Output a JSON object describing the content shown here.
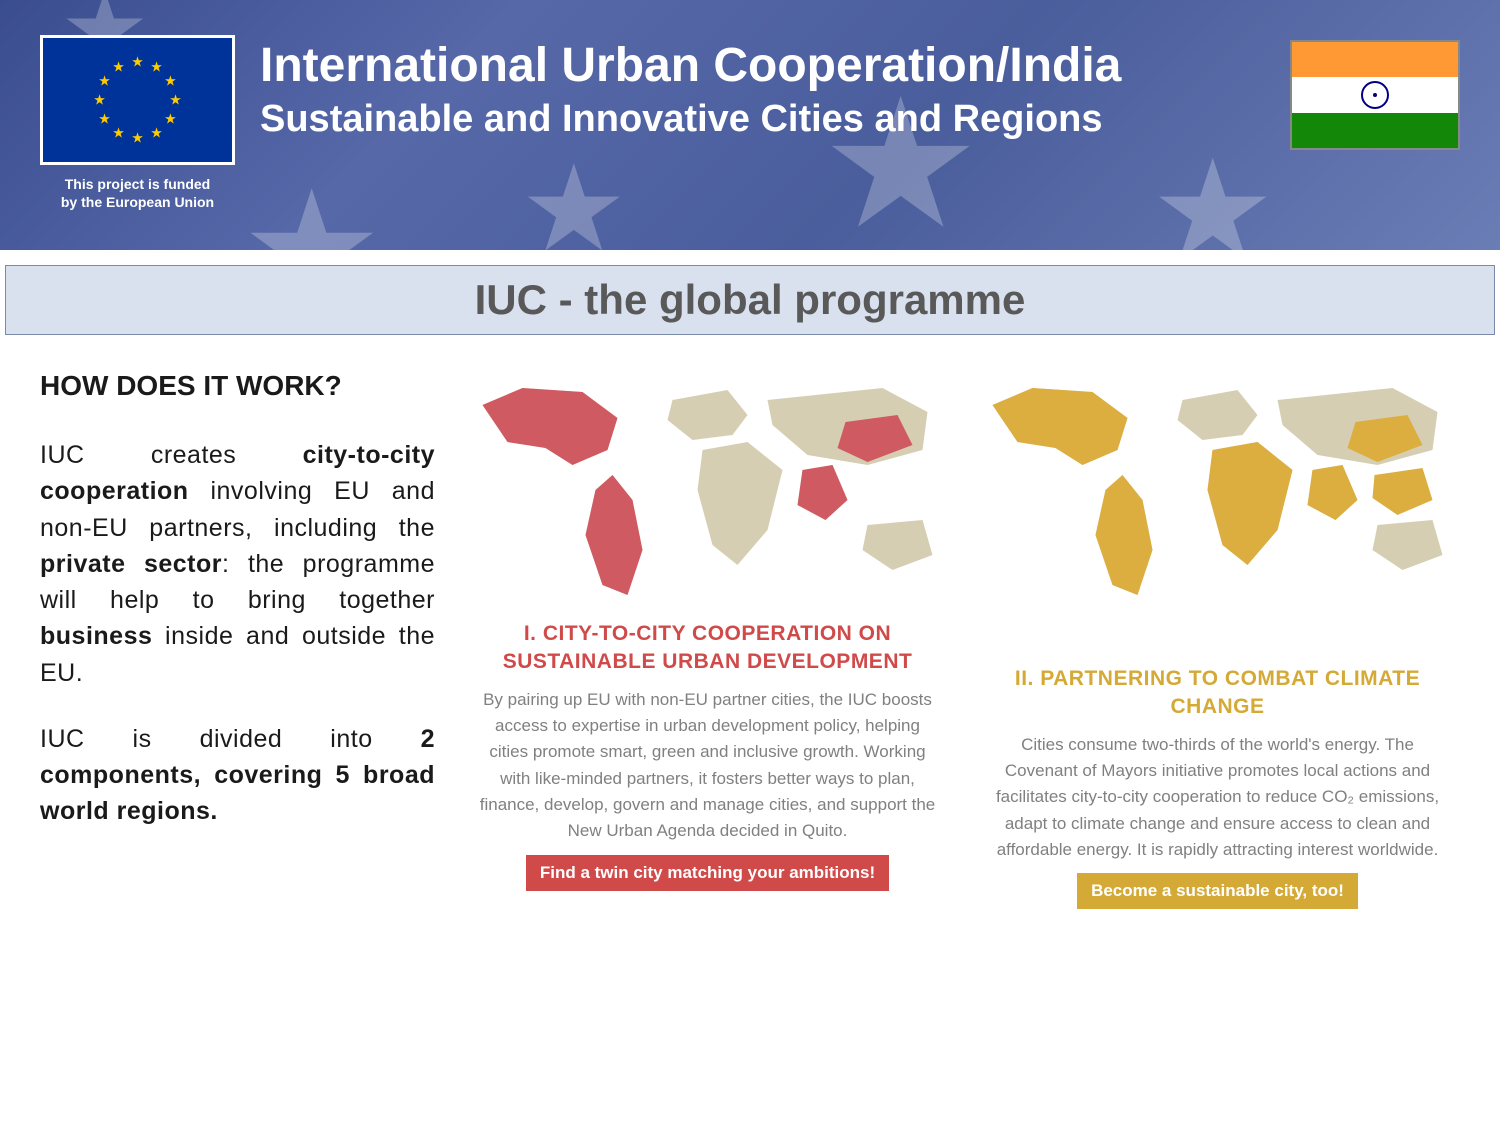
{
  "header": {
    "title": "International Urban Cooperation/India",
    "subtitle": "Sustainable and Innovative Cities and Regions",
    "funding_line1": "This project is funded",
    "funding_line2": "by the European Union",
    "bg_gradient_colors": [
      "#3a4d8f",
      "#5668a8",
      "#4a5d9c",
      "#6b7db5"
    ],
    "eu_flag": {
      "bg": "#003399",
      "star_color": "#ffcc00"
    },
    "india_flag": {
      "saffron": "#ff9933",
      "white": "#ffffff",
      "green": "#138808",
      "chakra": "#000080"
    }
  },
  "title_bar": {
    "text": "IUC - the global programme",
    "bg": "#d9e1ef",
    "text_color": "#595959"
  },
  "how": {
    "heading": "HOW DOES IT WORK?",
    "para1_parts": [
      "IUC creates ",
      "city-to-city cooperation",
      " involving EU and non-EU partners, including the ",
      "private sector",
      ": the programme will help to bring together ",
      "business",
      " inside and outside the EU."
    ],
    "para2_parts": [
      "IUC is divided into ",
      "2 components, covering 5 broad world regions."
    ]
  },
  "components": [
    {
      "map_colors": {
        "land": "#d6ceb3",
        "highlight": "#d05a62",
        "bg": "#ffffff"
      },
      "title": "I. CITY-TO-CITY COOPERATION ON SUSTAINABLE URBAN DEVELOPMENT",
      "title_color": "#d04a4a",
      "desc": "By pairing up EU with non-EU partner cities, the IUC boosts access to expertise in urban development policy, helping cities promote smart, green and inclusive growth. Working with like-minded partners, it fosters better ways to plan, finance, develop, govern and manage cities, and support the New Urban Agenda decided in Quito.",
      "cta": "Find a twin city matching your ambitions!",
      "cta_bg": "#d04a4a"
    },
    {
      "map_colors": {
        "land": "#d6ceb3",
        "highlight": "#dcae3f",
        "bg": "#ffffff"
      },
      "title": "II. PARTNERING TO COMBAT CLIMATE CHANGE",
      "title_color": "#d4a935",
      "desc": "Cities consume two-thirds of the world's energy. The Covenant of Mayors initiative promotes local actions and facilitates city-to-city cooperation to reduce CO₂ emissions, adapt to climate change and ensure access to clean and affordable energy. It is rapidly attracting interest worldwide.",
      "cta": "Become a sustainable city, too!",
      "cta_bg": "#d4a935"
    }
  ]
}
